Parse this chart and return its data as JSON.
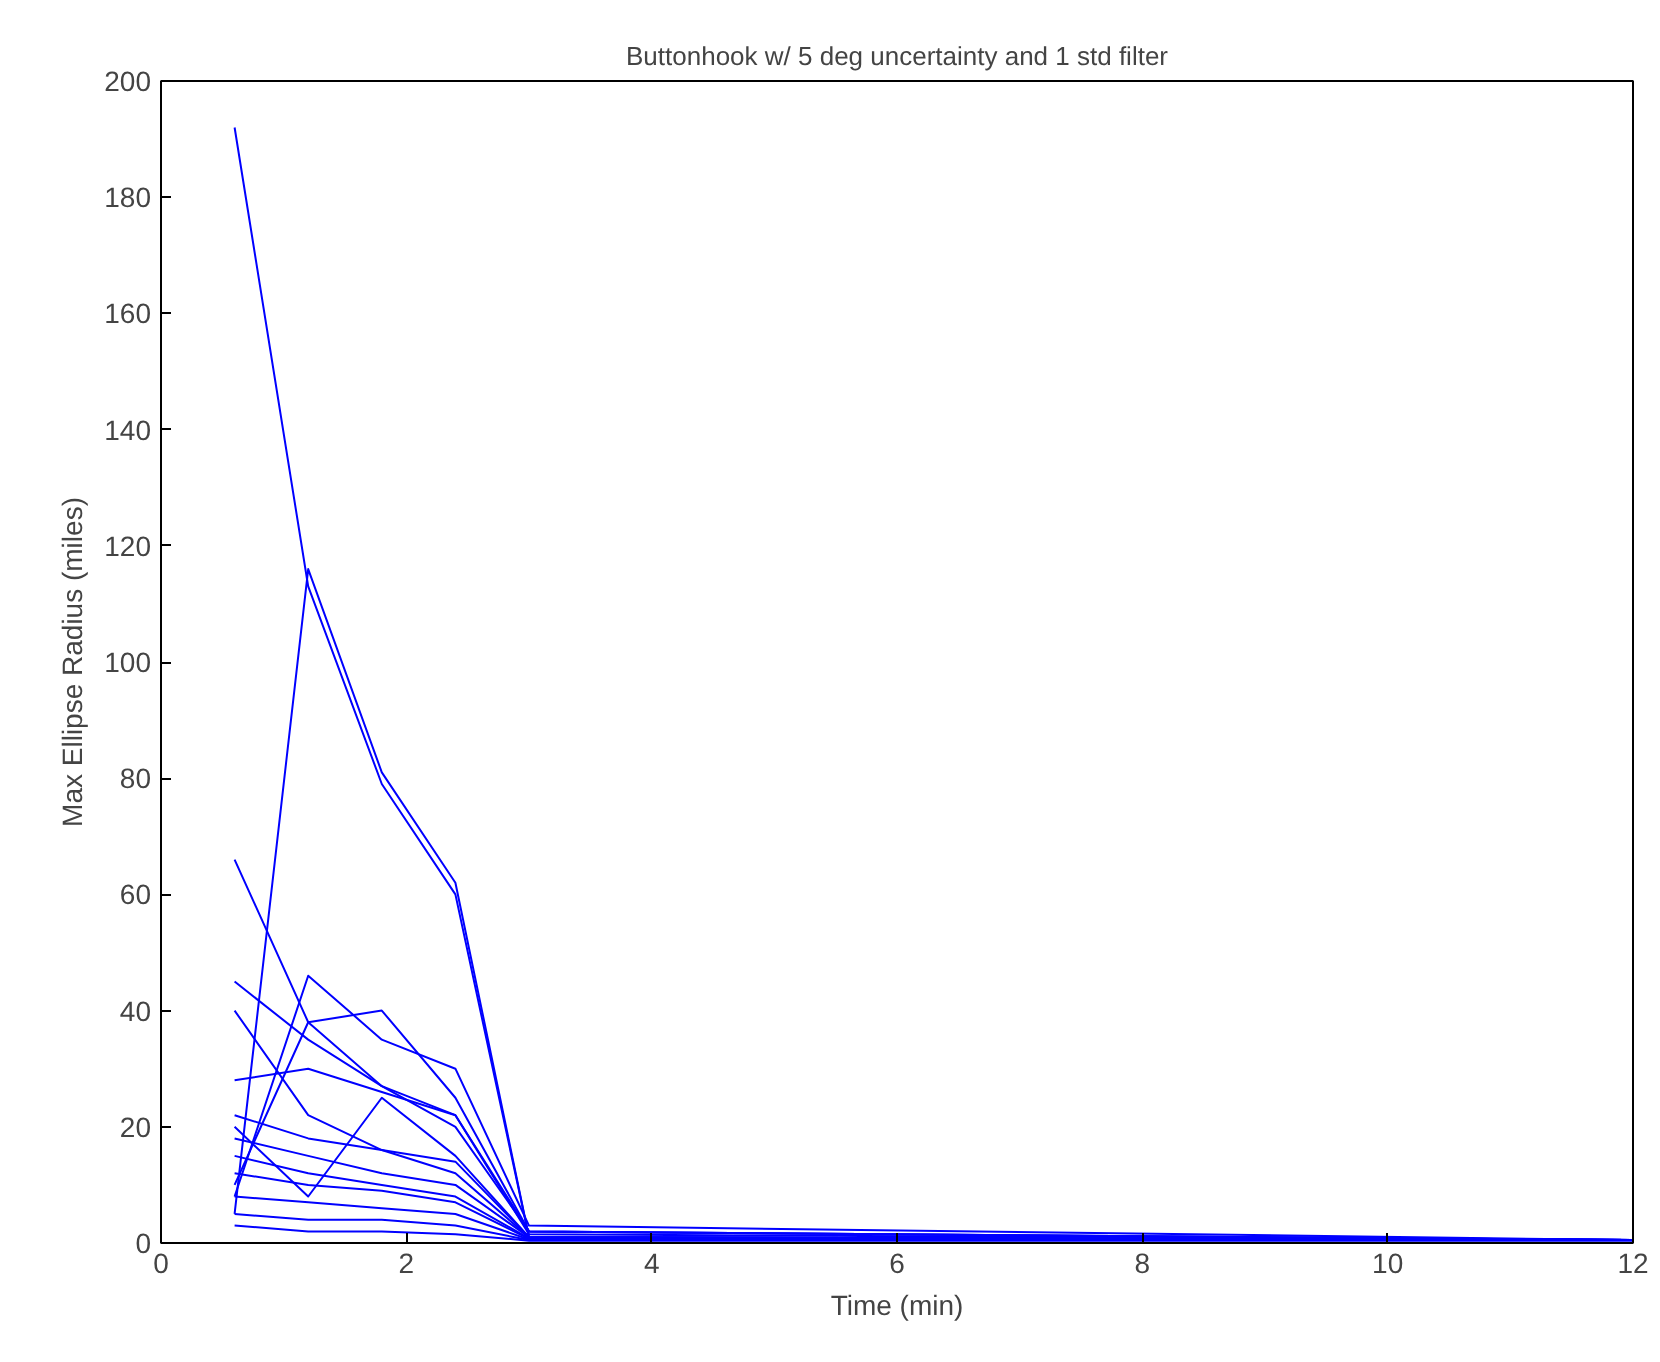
{
  "chart_data": {
    "type": "line",
    "title": "Buttonhook w/ 5 deg uncertainty and 1 std filter",
    "xlabel": "Time (min)",
    "ylabel": "Max Ellipse Radius (miles)",
    "x": [
      0.6,
      1.2,
      1.8,
      2.4,
      3.0,
      12
    ],
    "xlim": [
      0,
      12
    ],
    "xticks": [
      0,
      2,
      4,
      6,
      8,
      10,
      12
    ],
    "ylim": [
      0,
      200
    ],
    "yticks": [
      0,
      20,
      40,
      60,
      80,
      100,
      120,
      140,
      160,
      180,
      200
    ],
    "grid": false,
    "line_style": "solid",
    "series": [
      {
        "color": "#0000ff",
        "values": [
          192,
          113,
          79,
          60,
          1,
          0.5
        ]
      },
      {
        "color": "#0000ff",
        "values": [
          5,
          116,
          81,
          62,
          1,
          0.5
        ]
      },
      {
        "color": "#0000ff",
        "values": [
          66,
          38,
          27,
          22,
          2,
          0.5
        ]
      },
      {
        "color": "#0000ff",
        "values": [
          45,
          35,
          27,
          20,
          2,
          0.5
        ]
      },
      {
        "color": "#0000ff",
        "values": [
          40,
          22,
          16,
          14,
          1,
          0.5
        ]
      },
      {
        "color": "#0000ff",
        "values": [
          8,
          46,
          35,
          30,
          3,
          0.5
        ]
      },
      {
        "color": "#0000ff",
        "values": [
          10,
          38,
          40,
          25,
          2,
          0.5
        ]
      },
      {
        "color": "#0000ff",
        "values": [
          28,
          30,
          26,
          22,
          1.5,
          0.5
        ]
      },
      {
        "color": "#0000ff",
        "values": [
          22,
          18,
          16,
          12,
          1,
          0.5
        ]
      },
      {
        "color": "#0000ff",
        "values": [
          18,
          15,
          12,
          10,
          1,
          0.5
        ]
      },
      {
        "color": "#0000ff",
        "values": [
          15,
          12,
          10,
          8,
          0.8,
          0.5
        ]
      },
      {
        "color": "#0000ff",
        "values": [
          12,
          10,
          9,
          7,
          0.7,
          0.5
        ]
      },
      {
        "color": "#0000ff",
        "values": [
          8,
          7,
          6,
          5,
          0.6,
          0.5
        ]
      },
      {
        "color": "#0000ff",
        "values": [
          5,
          4,
          4,
          3,
          0.5,
          0.5
        ]
      },
      {
        "color": "#0000ff",
        "values": [
          3,
          2,
          2,
          1.5,
          0.4,
          0.4
        ]
      },
      {
        "color": "#0000ff",
        "values": [
          20,
          8,
          25,
          15,
          1,
          0.5
        ]
      }
    ]
  }
}
